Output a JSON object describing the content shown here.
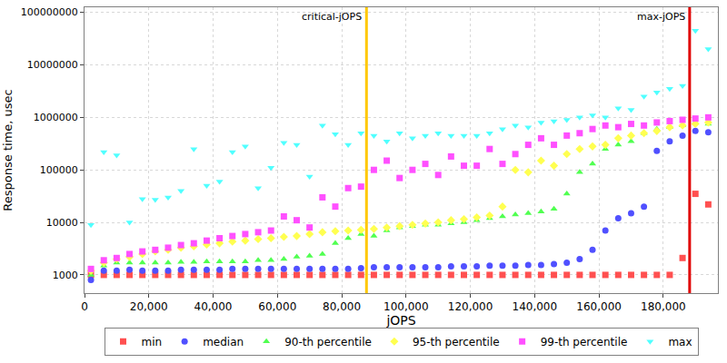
{
  "chart_data": {
    "type": "scatter",
    "x_label": "jOPS",
    "y_label": "Response time, usec",
    "log": "y",
    "grid": true,
    "legend": "bottom",
    "xlim": [
      0,
      197000
    ],
    "ylim": [
      450,
      125000000
    ],
    "xticks": [
      0,
      {
        "value": 20000,
        "label": "20,000"
      },
      {
        "value": 40000,
        "label": "40,000"
      },
      {
        "value": 60000,
        "label": "60,000"
      },
      {
        "value": 80000,
        "label": "80,000"
      },
      {
        "value": 100000,
        "label": "100,000"
      },
      {
        "value": 120000,
        "label": "120,000"
      },
      {
        "value": 140000,
        "label": "140,000"
      },
      {
        "value": 160000,
        "label": "160,000"
      },
      {
        "value": 180000,
        "label": "180,000"
      }
    ],
    "yticks": [
      1000,
      10000,
      100000,
      1000000,
      10000000,
      100000000
    ],
    "annotations": [
      {
        "text": "critical-jOPS",
        "x": 87700,
        "color": "#ffc800"
      },
      {
        "text": "max-jOPS",
        "x": 188200,
        "color": "#e00000"
      }
    ],
    "x": [
      2000,
      6000,
      10000,
      14000,
      18000,
      22000,
      26000,
      30000,
      34000,
      38000,
      42000,
      46000,
      50000,
      54000,
      58000,
      62000,
      66000,
      70000,
      74000,
      78000,
      82000,
      86000,
      90000,
      94000,
      98000,
      102000,
      106000,
      110000,
      114000,
      118000,
      122000,
      126000,
      130000,
      134000,
      138000,
      142000,
      146000,
      150000,
      154000,
      158000,
      162000,
      166000,
      170000,
      174000,
      178000,
      182000,
      186000,
      190000,
      194000
    ],
    "series": [
      {
        "name": "min",
        "color": "#ff5050",
        "marker": "square",
        "values": [
          1000,
          1000,
          1000,
          1000,
          1000,
          1000,
          1000,
          1000,
          1000,
          1000,
          1000,
          1000,
          1000,
          1000,
          1000,
          1000,
          1000,
          1000,
          1000,
          1000,
          1000,
          1000,
          1000,
          1000,
          1000,
          1000,
          1000,
          1000,
          1000,
          1000,
          1000,
          1000,
          1000,
          1000,
          1000,
          1000,
          1000,
          1000,
          1000,
          1000,
          1000,
          1000,
          1000,
          1000,
          1000,
          1000,
          2100,
          35000,
          22000
        ]
      },
      {
        "name": "median",
        "color": "#5050ff",
        "marker": "circle",
        "values": [
          800,
          1200,
          1200,
          1250,
          1200,
          1200,
          1200,
          1250,
          1250,
          1250,
          1250,
          1300,
          1300,
          1300,
          1300,
          1300,
          1300,
          1300,
          1300,
          1300,
          1300,
          1350,
          1400,
          1400,
          1400,
          1400,
          1400,
          1400,
          1450,
          1450,
          1450,
          1500,
          1500,
          1500,
          1550,
          1550,
          1600,
          1700,
          2000,
          3000,
          7000,
          12000,
          15000,
          20000,
          230000,
          350000,
          450000,
          550000,
          520000
        ]
      },
      {
        "name": "90-th percentile",
        "color": "#50ff50",
        "marker": "triangle-up",
        "values": [
          1000,
          1500,
          1700,
          1700,
          1700,
          1700,
          1700,
          1750,
          1750,
          1800,
          1800,
          1800,
          1800,
          1900,
          1900,
          2000,
          2200,
          2300,
          2500,
          4000,
          5000,
          6000,
          5500,
          7000,
          8000,
          8500,
          9000,
          9000,
          9500,
          10000,
          11000,
          12000,
          13000,
          14000,
          15000,
          16000,
          18000,
          35000,
          90000,
          130000,
          250000,
          300000,
          350000,
          500000,
          600000,
          650000,
          700000,
          800000,
          750000
        ]
      },
      {
        "name": "95-th percentile",
        "color": "#ffff50",
        "marker": "diamond",
        "values": [
          1200,
          1700,
          2000,
          2200,
          2500,
          2800,
          3000,
          3300,
          3500,
          3800,
          4000,
          4300,
          4500,
          4800,
          5000,
          5300,
          5500,
          6000,
          6500,
          6800,
          7000,
          7200,
          7500,
          8000,
          8500,
          9000,
          9500,
          10000,
          11000,
          11500,
          12500,
          13500,
          20000,
          100000,
          90000,
          150000,
          120000,
          200000,
          250000,
          280000,
          300000,
          400000,
          450000,
          500000,
          550000,
          650000,
          700000,
          750000,
          800000
        ]
      },
      {
        "name": "99-th percentile",
        "color": "#ff50ff",
        "marker": "square",
        "values": [
          1300,
          1900,
          2100,
          2500,
          2800,
          3000,
          3300,
          3700,
          4000,
          4500,
          5000,
          5500,
          6000,
          6500,
          7000,
          13000,
          11000,
          8000,
          30000,
          20000,
          45000,
          48000,
          100000,
          150000,
          70000,
          100000,
          130000,
          80000,
          180000,
          120000,
          120000,
          250000,
          130000,
          200000,
          300000,
          400000,
          300000,
          450000,
          500000,
          600000,
          700000,
          650000,
          750000,
          700000,
          800000,
          850000,
          900000,
          950000,
          1000000
        ]
      },
      {
        "name": "max",
        "color": "#50ffff",
        "marker": "triangle-down",
        "values": [
          9000,
          220000,
          190000,
          10000,
          28000,
          27000,
          30000,
          40000,
          250000,
          50000,
          60000,
          220000,
          280000,
          45000,
          110000,
          330000,
          300000,
          75000,
          700000,
          480000,
          300000,
          500000,
          450000,
          350000,
          500000,
          400000,
          450000,
          500000,
          450000,
          450000,
          450000,
          500000,
          600000,
          700000,
          650000,
          800000,
          850000,
          900000,
          1000000,
          1100000,
          1000000,
          1500000,
          1400000,
          2500000,
          3000000,
          3500000,
          4000000,
          45000000,
          20000000
        ]
      }
    ]
  }
}
